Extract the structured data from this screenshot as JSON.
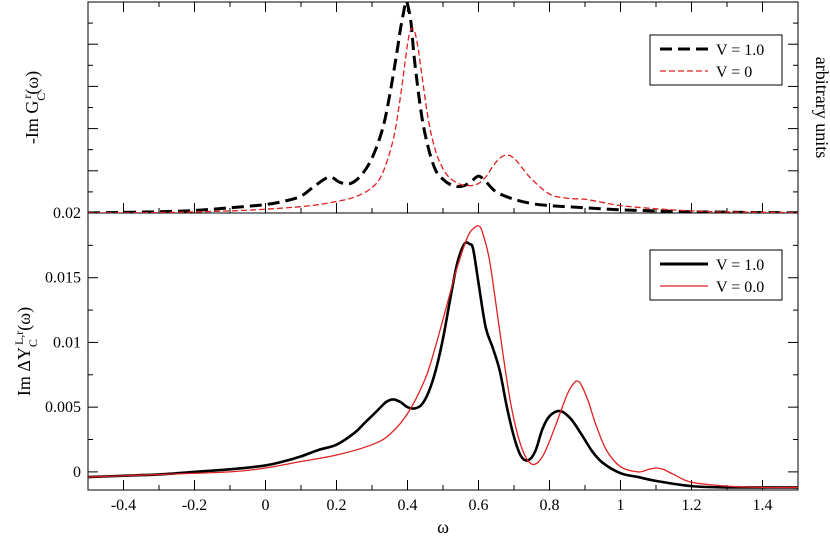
{
  "chart_data": [
    {
      "type": "line",
      "panel": "top",
      "ylabel": "-Im G_C^r(ω)",
      "right_label": "arbitrary units",
      "xlim": [
        -0.5,
        1.5
      ],
      "ylim": [
        0,
        1
      ],
      "y_tick_labels": [],
      "grid": false,
      "legend_position": "top-right",
      "series": [
        {
          "name": "V = 1.0",
          "color": "#000000",
          "style": "dashed",
          "x": [
            -0.5,
            -0.4,
            -0.3,
            -0.2,
            -0.1,
            0.0,
            0.05,
            0.1,
            0.14,
            0.18,
            0.21,
            0.24,
            0.27,
            0.3,
            0.33,
            0.35,
            0.37,
            0.38,
            0.39,
            0.395,
            0.4,
            0.41,
            0.42,
            0.44,
            0.46,
            0.48,
            0.5,
            0.52,
            0.54,
            0.56,
            0.58,
            0.6,
            0.62,
            0.65,
            0.7,
            0.75,
            0.8,
            0.9,
            1.0,
            1.1,
            1.2,
            1.3,
            1.4,
            1.5
          ],
          "y": [
            0.0,
            0.003,
            0.006,
            0.012,
            0.025,
            0.04,
            0.055,
            0.08,
            0.13,
            0.17,
            0.145,
            0.14,
            0.18,
            0.26,
            0.4,
            0.56,
            0.76,
            0.87,
            0.96,
            1.0,
            0.99,
            0.9,
            0.72,
            0.46,
            0.3,
            0.2,
            0.16,
            0.135,
            0.125,
            0.13,
            0.15,
            0.175,
            0.15,
            0.1,
            0.065,
            0.045,
            0.035,
            0.025,
            0.015,
            0.01,
            0.006,
            0.004,
            0.002,
            0.001
          ]
        },
        {
          "name": "V = 0",
          "color": "#e02020",
          "style": "dashed",
          "x": [
            -0.5,
            -0.3,
            -0.1,
            0.0,
            0.1,
            0.15,
            0.2,
            0.25,
            0.3,
            0.33,
            0.36,
            0.38,
            0.4,
            0.41,
            0.42,
            0.43,
            0.44,
            0.46,
            0.48,
            0.5,
            0.52,
            0.55,
            0.58,
            0.6,
            0.62,
            0.64,
            0.66,
            0.68,
            0.7,
            0.72,
            0.75,
            0.8,
            0.85,
            0.9,
            0.95,
            1.0,
            1.1,
            1.2,
            1.3,
            1.5
          ],
          "y": [
            0.0,
            0.002,
            0.01,
            0.018,
            0.03,
            0.04,
            0.055,
            0.075,
            0.12,
            0.19,
            0.35,
            0.55,
            0.8,
            0.87,
            0.86,
            0.78,
            0.66,
            0.43,
            0.29,
            0.21,
            0.165,
            0.135,
            0.13,
            0.14,
            0.17,
            0.22,
            0.26,
            0.275,
            0.26,
            0.22,
            0.16,
            0.09,
            0.07,
            0.065,
            0.05,
            0.035,
            0.02,
            0.01,
            0.005,
            0.002
          ]
        }
      ]
    },
    {
      "type": "line",
      "panel": "bottom",
      "xlabel": "ω",
      "ylabel": "Im ΔY_C^{L,r}(ω)",
      "xlim": [
        -0.5,
        1.5
      ],
      "ylim": [
        -0.0014,
        0.02
      ],
      "x_ticks": [
        -0.4,
        -0.2,
        0,
        0.2,
        0.4,
        0.6,
        0.8,
        1,
        1.2,
        1.4
      ],
      "x_tick_labels": [
        "-0.4",
        "-0.2",
        "0",
        "0.2",
        "0.4",
        "0.6",
        "0.8",
        "1",
        "1.2",
        "1.4"
      ],
      "y_ticks": [
        0,
        0.005,
        0.01,
        0.015,
        0.02
      ],
      "y_tick_labels": [
        "0",
        "0.005",
        "0.01",
        "0.015",
        "0.02"
      ],
      "grid": false,
      "legend_position": "top-right",
      "series": [
        {
          "name": "V = 1.0",
          "color": "#000000",
          "style": "solid",
          "x": [
            -0.5,
            -0.4,
            -0.3,
            -0.2,
            -0.1,
            0.0,
            0.05,
            0.1,
            0.15,
            0.2,
            0.25,
            0.28,
            0.31,
            0.34,
            0.36,
            0.38,
            0.4,
            0.42,
            0.44,
            0.46,
            0.48,
            0.5,
            0.52,
            0.54,
            0.56,
            0.575,
            0.585,
            0.6,
            0.62,
            0.64,
            0.66,
            0.68,
            0.7,
            0.72,
            0.74,
            0.76,
            0.78,
            0.8,
            0.83,
            0.86,
            0.89,
            0.92,
            0.95,
            1.0,
            1.05,
            1.1,
            1.2,
            1.3,
            1.4,
            1.5
          ],
          "y": [
            -0.0004,
            -0.0003,
            -0.0002,
            0.0,
            0.0002,
            0.0005,
            0.0008,
            0.0012,
            0.0017,
            0.0021,
            0.003,
            0.0038,
            0.0046,
            0.0054,
            0.0056,
            0.0054,
            0.005,
            0.0049,
            0.0052,
            0.0062,
            0.0079,
            0.0103,
            0.0133,
            0.0161,
            0.0176,
            0.0176,
            0.0172,
            0.0146,
            0.0112,
            0.0096,
            0.0078,
            0.005,
            0.0027,
            0.0012,
            0.0009,
            0.0016,
            0.0033,
            0.0043,
            0.0047,
            0.0041,
            0.0029,
            0.0016,
            0.0007,
            -0.0001,
            -0.0004,
            -0.0007,
            -0.0011,
            -0.0012,
            -0.0012,
            -0.0012
          ]
        },
        {
          "name": "V = 0.0",
          "color": "#e02020",
          "style": "solid",
          "x": [
            -0.5,
            -0.3,
            -0.1,
            0.0,
            0.1,
            0.2,
            0.3,
            0.35,
            0.4,
            0.45,
            0.48,
            0.51,
            0.54,
            0.57,
            0.59,
            0.6,
            0.61,
            0.63,
            0.65,
            0.67,
            0.69,
            0.71,
            0.73,
            0.75,
            0.77,
            0.79,
            0.82,
            0.85,
            0.87,
            0.88,
            0.89,
            0.91,
            0.93,
            0.96,
            1.0,
            1.05,
            1.08,
            1.1,
            1.12,
            1.15,
            1.2,
            1.3,
            1.4,
            1.5
          ],
          "y": [
            -0.0004,
            -0.0002,
            0.0,
            0.0003,
            0.0008,
            0.0013,
            0.0021,
            0.0029,
            0.0045,
            0.0072,
            0.0098,
            0.0128,
            0.0158,
            0.0182,
            0.0189,
            0.019,
            0.0186,
            0.0165,
            0.0128,
            0.0089,
            0.0054,
            0.0029,
            0.0013,
            0.0006,
            0.0008,
            0.0017,
            0.0038,
            0.006,
            0.0069,
            0.007,
            0.0067,
            0.0054,
            0.0037,
            0.0017,
            0.0004,
            0.0,
            0.0002,
            0.0003,
            0.0002,
            -0.0002,
            -0.0008,
            -0.0011,
            -0.0012,
            -0.0012
          ]
        }
      ]
    }
  ]
}
